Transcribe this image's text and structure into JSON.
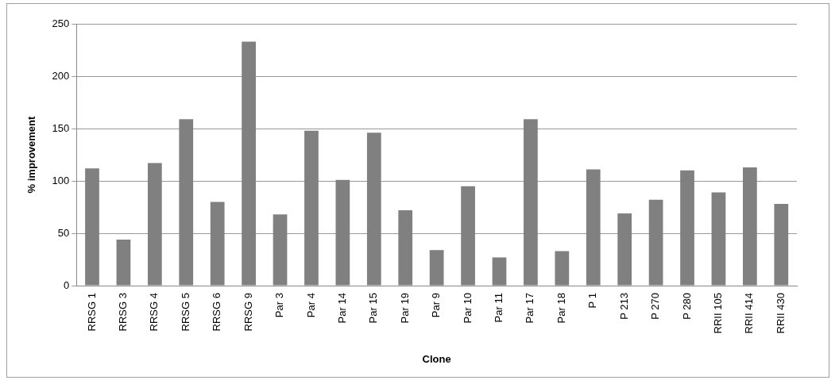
{
  "chart_data": {
    "type": "bar",
    "xlabel": "Clone",
    "ylabel": "% improvement",
    "categories": [
      "RRSG 1",
      "RRSG 3",
      "RRSG 4",
      "RRSG 5",
      "RRSG 6",
      "RRSG 9",
      "Par 3",
      "Par 4",
      "Par 14",
      "Par 15",
      "Par 19",
      "Par 9",
      "Par 10",
      "Par 11",
      "Par 17",
      "Par 18",
      "P 1",
      "P 213",
      "P 270",
      "P 280",
      "RRII 105",
      "RRII 414",
      "RRII 430"
    ],
    "values": [
      112,
      44,
      117,
      159,
      80,
      233,
      68,
      148,
      101,
      146,
      72,
      34,
      95,
      27,
      159,
      33,
      111,
      69,
      82,
      110,
      89,
      113,
      78
    ],
    "color": "#808080",
    "ylim": [
      0,
      250
    ],
    "yticks": [
      0,
      50,
      100,
      150,
      200,
      250
    ],
    "grid": "y",
    "legend": false
  }
}
